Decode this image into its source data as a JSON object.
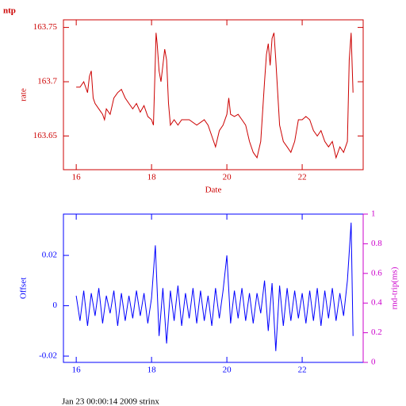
{
  "footer": "Jan 23 00:00:14 2009 strinx",
  "chart_data": [
    {
      "type": "line",
      "title": "ntp",
      "xlabel": "Date",
      "ylabel": "rate",
      "axis_color": "#cc0000",
      "xlim": [
        15.66,
        23.62
      ],
      "xticks": [
        16,
        18,
        20,
        22
      ],
      "ylim": [
        163.619,
        163.757
      ],
      "yticks": [
        163.65,
        163.7,
        163.75
      ],
      "x": [
        16.0,
        16.1,
        16.2,
        16.3,
        16.35,
        16.4,
        16.45,
        16.5,
        16.6,
        16.7,
        16.75,
        16.8,
        16.9,
        17.0,
        17.1,
        17.2,
        17.3,
        17.4,
        17.5,
        17.6,
        17.7,
        17.8,
        17.9,
        18.0,
        18.05,
        18.1,
        18.12,
        18.15,
        18.2,
        18.25,
        18.3,
        18.35,
        18.4,
        18.45,
        18.5,
        18.6,
        18.7,
        18.8,
        19.0,
        19.2,
        19.4,
        19.5,
        19.6,
        19.7,
        19.8,
        19.9,
        20.0,
        20.05,
        20.1,
        20.2,
        20.3,
        20.4,
        20.5,
        20.6,
        20.7,
        20.8,
        20.9,
        21.0,
        21.05,
        21.1,
        21.15,
        21.2,
        21.25,
        21.3,
        21.35,
        21.4,
        21.5,
        21.6,
        21.7,
        21.8,
        21.9,
        22.0,
        22.1,
        22.2,
        22.3,
        22.4,
        22.5,
        22.6,
        22.7,
        22.8,
        22.9,
        23.0,
        23.1,
        23.2,
        23.25,
        23.3,
        23.35
      ],
      "series": [
        {
          "color": "#cc0000",
          "values": [
            163.695,
            163.695,
            163.7,
            163.69,
            163.705,
            163.71,
            163.685,
            163.68,
            163.675,
            163.67,
            163.665,
            163.675,
            163.67,
            163.685,
            163.69,
            163.693,
            163.685,
            163.68,
            163.675,
            163.68,
            163.672,
            163.678,
            163.668,
            163.665,
            163.66,
            163.72,
            163.745,
            163.735,
            163.71,
            163.7,
            163.715,
            163.73,
            163.72,
            163.68,
            163.66,
            163.665,
            163.66,
            163.665,
            163.665,
            163.66,
            163.665,
            163.66,
            163.65,
            163.64,
            163.655,
            163.66,
            163.67,
            163.685,
            163.67,
            163.668,
            163.67,
            163.665,
            163.66,
            163.645,
            163.635,
            163.63,
            163.645,
            163.7,
            163.725,
            163.735,
            163.715,
            163.74,
            163.745,
            163.72,
            163.69,
            163.66,
            163.645,
            163.64,
            163.635,
            163.645,
            163.665,
            163.665,
            163.668,
            163.665,
            163.655,
            163.65,
            163.655,
            163.645,
            163.64,
            163.645,
            163.63,
            163.64,
            163.635,
            163.645,
            163.72,
            163.745,
            163.69
          ]
        }
      ]
    },
    {
      "type": "line",
      "ylabel": "Offset",
      "y2label": "rnd-trip(ms)",
      "axis_color": "#0000ff",
      "y2color": "#cc00cc",
      "xlim": [
        15.66,
        23.62
      ],
      "xticks": [
        16,
        18,
        20,
        22
      ],
      "ylim": [
        -0.0225,
        0.0364
      ],
      "yticks": [
        -0.02,
        0,
        0.02
      ],
      "y2lim": [
        0,
        1
      ],
      "y2ticks": [
        0,
        0.2,
        0.4,
        0.6,
        0.8,
        1
      ],
      "x": [
        16.0,
        16.1,
        16.2,
        16.3,
        16.4,
        16.5,
        16.6,
        16.7,
        16.8,
        16.9,
        17.0,
        17.1,
        17.2,
        17.3,
        17.4,
        17.5,
        17.6,
        17.7,
        17.8,
        17.9,
        18.0,
        18.1,
        18.2,
        18.3,
        18.4,
        18.5,
        18.6,
        18.7,
        18.8,
        18.9,
        19.0,
        19.1,
        19.2,
        19.3,
        19.4,
        19.5,
        19.6,
        19.7,
        19.8,
        19.9,
        20.0,
        20.1,
        20.2,
        20.3,
        20.4,
        20.5,
        20.6,
        20.7,
        20.8,
        20.9,
        21.0,
        21.1,
        21.2,
        21.3,
        21.4,
        21.5,
        21.6,
        21.7,
        21.8,
        21.9,
        22.0,
        22.1,
        22.2,
        22.3,
        22.4,
        22.5,
        22.6,
        22.7,
        22.8,
        22.9,
        23.0,
        23.1,
        23.2,
        23.3,
        23.35
      ],
      "series": [
        {
          "color": "#0000ff",
          "values": [
            0.004,
            -0.006,
            0.006,
            -0.008,
            0.005,
            -0.004,
            0.007,
            -0.007,
            0.004,
            -0.003,
            0.006,
            -0.008,
            0.005,
            -0.006,
            0.004,
            -0.005,
            0.006,
            -0.004,
            0.005,
            -0.007,
            0.003,
            0.024,
            -0.012,
            0.007,
            -0.015,
            0.006,
            -0.006,
            0.008,
            -0.008,
            0.005,
            -0.005,
            0.007,
            -0.007,
            0.006,
            -0.006,
            0.004,
            -0.008,
            0.007,
            -0.005,
            0.006,
            0.02,
            -0.007,
            0.006,
            -0.005,
            0.007,
            -0.006,
            0.005,
            -0.007,
            0.005,
            -0.003,
            0.01,
            -0.01,
            0.009,
            -0.018,
            0.008,
            -0.008,
            0.007,
            -0.006,
            0.006,
            -0.005,
            0.005,
            -0.007,
            0.006,
            -0.006,
            0.007,
            -0.008,
            0.006,
            -0.005,
            0.007,
            -0.006,
            0.005,
            -0.004,
            0.01,
            0.033,
            -0.012
          ]
        }
      ]
    }
  ]
}
